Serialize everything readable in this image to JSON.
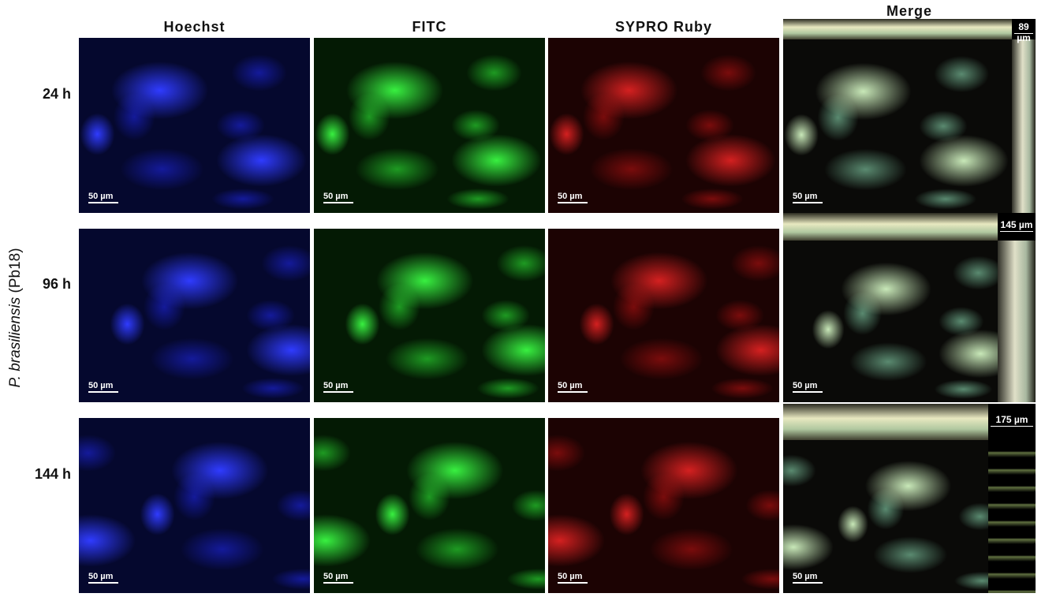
{
  "columns": [
    "Hoechst",
    "FITC",
    "SYPRO Ruby",
    "Merge"
  ],
  "rows": [
    {
      "label": "24 h",
      "depth": "89 µm"
    },
    {
      "label": "96 h",
      "depth": "145 µm"
    },
    {
      "label": "144 h",
      "depth": "175 µm"
    }
  ],
  "side_label": {
    "species": "P. brasiliensis",
    "strain": "(Pb18)"
  },
  "scale_bar": "50 µm"
}
